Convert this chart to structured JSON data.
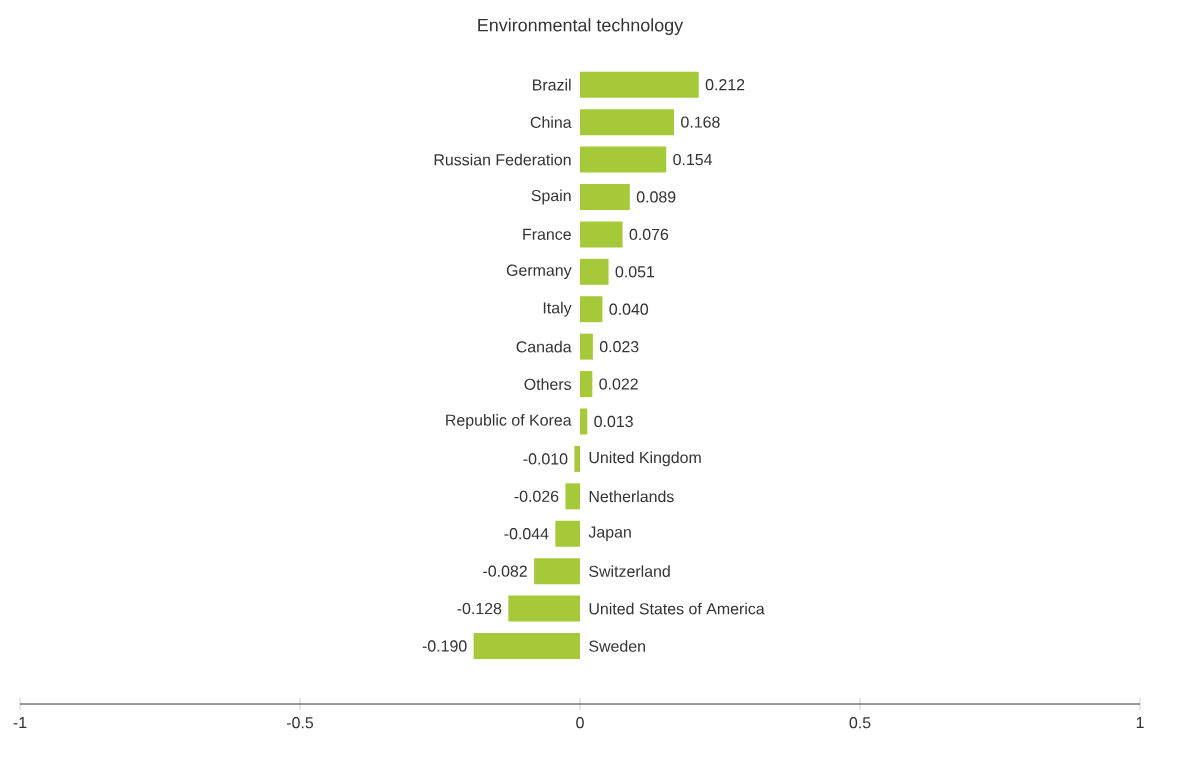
{
  "chart_data": {
    "type": "bar",
    "orientation": "horizontal",
    "title": "Environmental technology",
    "categories": [
      "Brazil",
      "China",
      "Russian Federation",
      "Spain",
      "France",
      "Germany",
      "Italy",
      "Canada",
      "Others",
      "Republic of Korea",
      "United Kingdom",
      "Netherlands",
      "Japan",
      "Switzerland",
      "United States of America",
      "Sweden"
    ],
    "values": [
      0.212,
      0.168,
      0.154,
      0.089,
      0.076,
      0.051,
      0.04,
      0.023,
      0.022,
      0.013,
      -0.01,
      -0.026,
      -0.044,
      -0.082,
      -0.128,
      -0.19
    ],
    "value_labels": [
      "0.212",
      "0.168",
      "0.154",
      "0.089",
      "0.076",
      "0.051",
      "0.040",
      "0.023",
      "0.022",
      "0.013",
      "-0.010",
      "-0.026",
      "-0.044",
      "-0.082",
      "-0.128",
      "-0.190"
    ],
    "color": "#a6c93a",
    "xlim": [
      -1,
      1
    ],
    "xticks": [
      -1,
      -0.5,
      0,
      0.5,
      1
    ]
  }
}
